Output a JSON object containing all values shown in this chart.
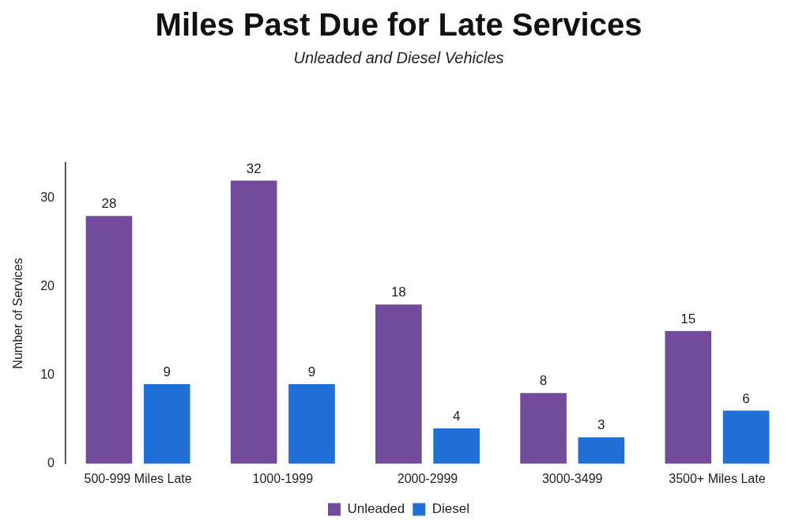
{
  "chart_data": {
    "type": "bar",
    "title": "Miles Past Due for Late Services",
    "subtitle": "Unleaded and Diesel Vehicles",
    "ylabel": "Number of Services",
    "categories": [
      "500-999 Miles Late",
      "1000-1999",
      "2000-2999",
      "3000-3499",
      "3500+ Miles Late"
    ],
    "series": [
      {
        "name": "Unleaded",
        "color": "#734b9b",
        "values": [
          28,
          32,
          18,
          8,
          15
        ]
      },
      {
        "name": "Diesel",
        "color": "#1f6fd6",
        "values": [
          9,
          9,
          4,
          3,
          6
        ]
      }
    ],
    "ylim": [
      0,
      34
    ],
    "yticks": [
      0,
      10,
      20,
      30
    ],
    "grid": false,
    "legend": "bottom",
    "data_labels": true
  }
}
